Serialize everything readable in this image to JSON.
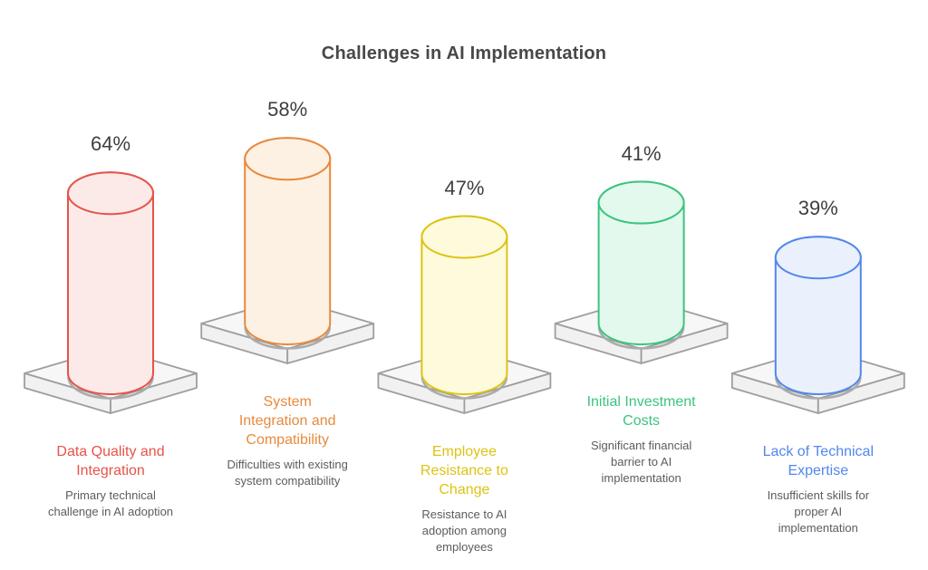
{
  "header": {
    "title": "Challenges in AI Implementation"
  },
  "chart_data": {
    "type": "bar",
    "variant": "isometric-cylinder-infographic",
    "title": "Challenges in AI Implementation",
    "unit": "%",
    "ylim": [
      0,
      100
    ],
    "legend": false,
    "categories": [
      "Data Quality and Integration",
      "System Integration and Compatibility",
      "Employee Resistance to Change",
      "Initial Investment Costs",
      "Lack of Technical Expertise"
    ],
    "values": [
      64,
      58,
      47,
      41,
      39
    ],
    "items": [
      {
        "id": "data-quality-and-integration",
        "label": "Data Quality and\nIntegration",
        "value": 64,
        "value_label": "64%",
        "description": "Primary technical\nchallenge in AI adoption",
        "color": "#e5534b",
        "fill_color": "#fceae8"
      },
      {
        "id": "system-integration-and-compatibility",
        "label": "System\nIntegration and\nCompatibility",
        "value": 58,
        "value_label": "58%",
        "description": "Difficulties with existing\nsystem compatibility",
        "color": "#e78a3e",
        "fill_color": "#fdf1e3"
      },
      {
        "id": "employee-resistance-to-change",
        "label": "Employee\nResistance to\nChange",
        "value": 47,
        "value_label": "47%",
        "description": "Resistance to AI\nadoption among\nemployees",
        "color": "#ddc315",
        "fill_color": "#fdfbdc"
      },
      {
        "id": "initial-investment-costs",
        "label": "Initial Investment\nCosts",
        "value": 41,
        "value_label": "41%",
        "description": "Significant financial\nbarrier to AI\nimplementation",
        "color": "#3cc47e",
        "fill_color": "#e4f9ee"
      },
      {
        "id": "lack-of-technical-expertise",
        "label": "Lack of Technical\nExpertise",
        "value": 39,
        "value_label": "39%",
        "description": "Insufficient skills for\nproper AI\nimplementation",
        "color": "#5287ec",
        "fill_color": "#eaf1fc"
      }
    ],
    "styles": {
      "title_color": "#484848",
      "value_color": "#3f3f3f",
      "description_color": "#5c5c5c",
      "platform_top_fill": "#f7f7f7",
      "platform_side_fill": "#f1f1f1",
      "platform_stroke": "#9e9e9e",
      "shadow_stroke": "#ababab",
      "background": "#ffffff"
    }
  }
}
